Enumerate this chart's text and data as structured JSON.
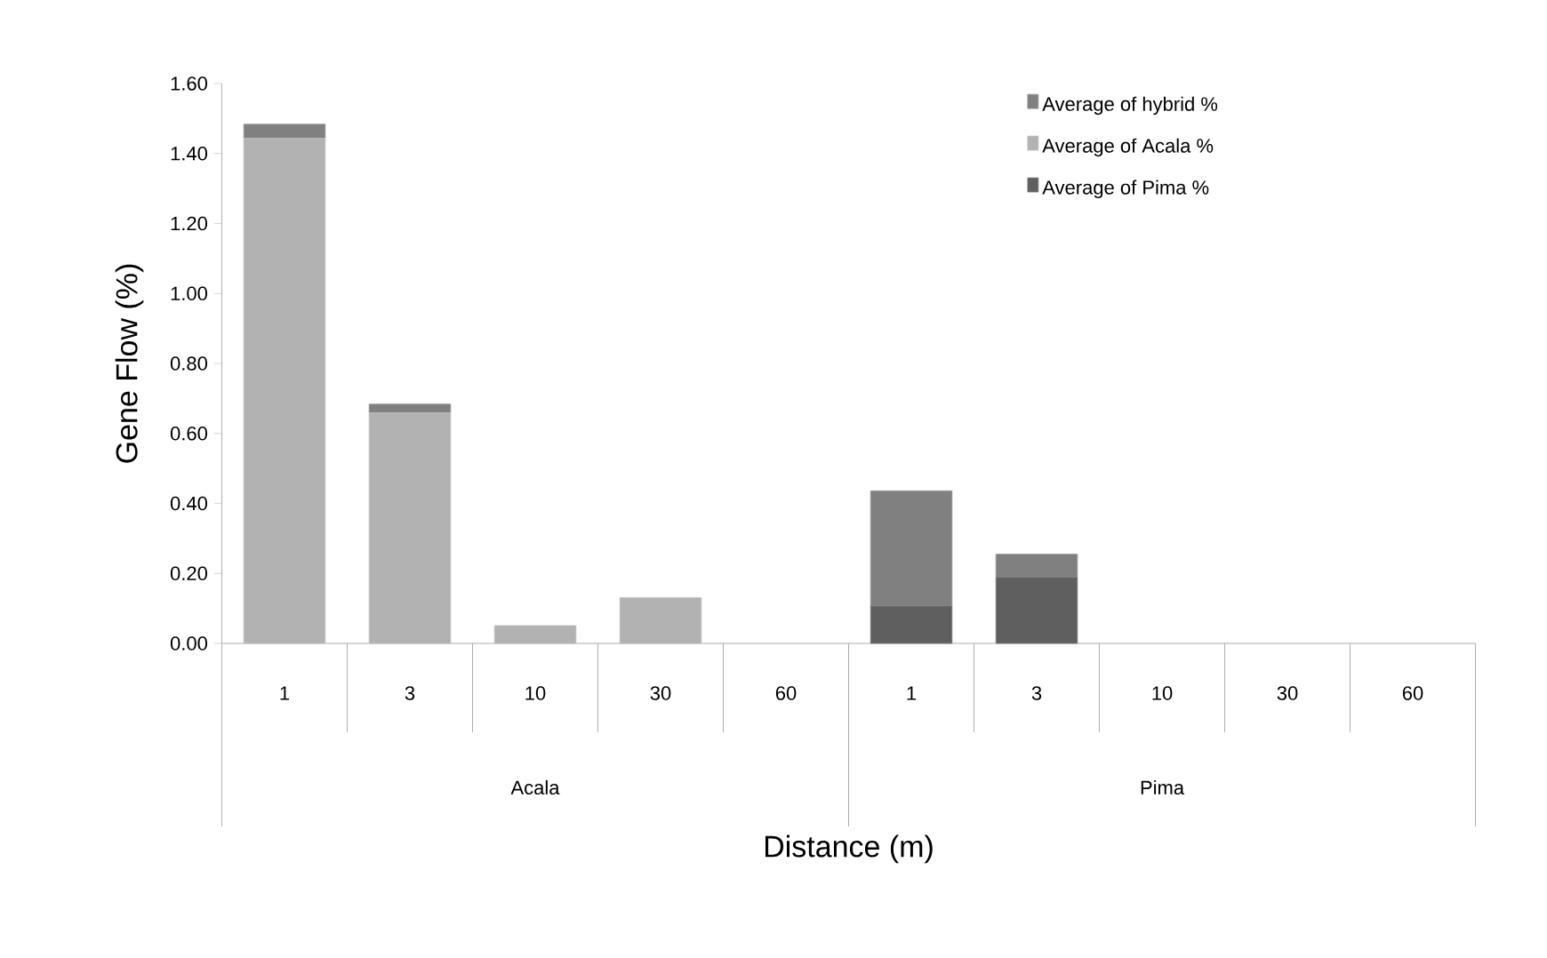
{
  "chart_data": {
    "type": "bar",
    "stacked": true,
    "xlabel": "Distance (m)",
    "ylabel": "Gene Flow (%)",
    "categories": [
      "1",
      "3",
      "10",
      "30",
      "60",
      "1",
      "3",
      "10",
      "30",
      "60"
    ],
    "annotations": [
      "Acala",
      "Pima"
    ],
    "series": [
      {
        "name": "Average of Pima %",
        "color": "#5f5f5f",
        "values": [
          0,
          0,
          0,
          0,
          0,
          0.107,
          0.189,
          0,
          0,
          0
        ]
      },
      {
        "name": "Average of Acala %",
        "color": "#b2b2b2",
        "values": [
          1.443,
          0.659,
          0.051,
          0.131,
          0,
          0,
          0,
          0,
          0,
          0
        ]
      },
      {
        "name": "Average of hybrid %",
        "color": "#808080",
        "values": [
          0.041,
          0.025,
          0,
          0,
          0,
          0.329,
          0.066,
          0,
          0,
          0
        ]
      }
    ],
    "ylim": [
      0,
      1.6
    ],
    "yticks": [
      {
        "value": 0,
        "label": "0.00"
      },
      {
        "value": 0.2,
        "label": "0.20"
      },
      {
        "value": 0.4,
        "label": "0.40"
      },
      {
        "value": 0.6,
        "label": "0.60"
      },
      {
        "value": 0.8,
        "label": "0.80"
      },
      {
        "value": 1.0,
        "label": "1.00"
      },
      {
        "value": 1.2,
        "label": "1.20"
      },
      {
        "value": 1.4,
        "label": "1.40"
      },
      {
        "value": 1.6,
        "label": "1.60"
      }
    ],
    "grid": false,
    "legend": "top right"
  }
}
